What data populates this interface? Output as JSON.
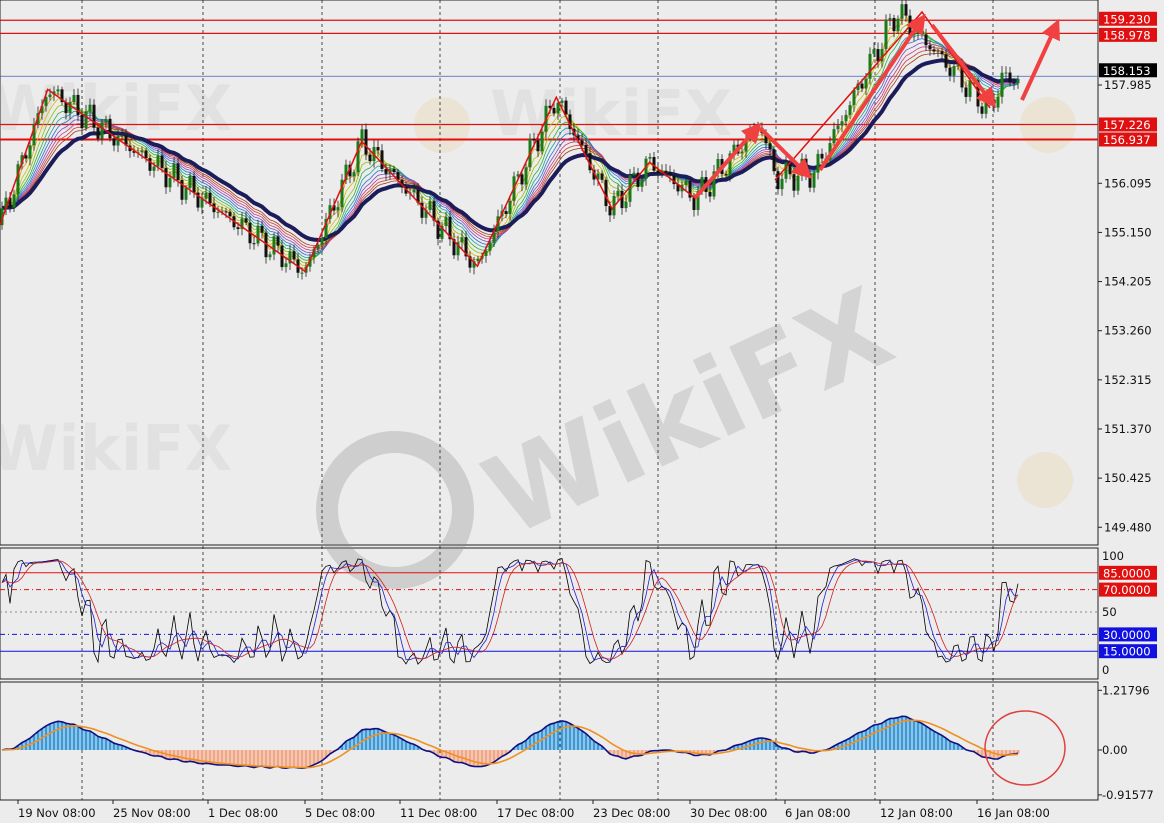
{
  "chart_data": {
    "type": "candlestick",
    "title": "",
    "watermark": "WikiFX",
    "price_axis": {
      "ticks": [
        "157.985",
        "156.095",
        "155.150",
        "154.205",
        "153.260",
        "152.315",
        "151.370",
        "150.425",
        "149.480"
      ],
      "ylim": [
        149.2,
        159.5
      ]
    },
    "time_axis": {
      "ticks": [
        "19 Nov 08:00",
        "25 Nov 08:00",
        "1 Dec 08:00",
        "5 Dec 08:00",
        "11 Dec 08:00",
        "17 Dec 08:00",
        "23 Dec 08:00",
        "30 Dec 08:00",
        "6 Jan 08:00",
        "12 Jan 08:00",
        "16 Jan 08:00"
      ]
    },
    "current_price": "158.153",
    "horizontal_levels": [
      {
        "value": "159.230",
        "color": "#e01010"
      },
      {
        "value": "158.978",
        "color": "#e01010"
      },
      {
        "value": "157.226",
        "color": "#e01010"
      },
      {
        "value": "156.937",
        "color": "#e01010"
      }
    ],
    "price_path_pivots": [
      {
        "t": "18 Nov 05:00",
        "price": 155.3
      },
      {
        "t": "21 Nov 05:00",
        "price": 157.9
      },
      {
        "t": "5 Dec 08:00",
        "price": 154.4
      },
      {
        "t": "8 Dec 22:00",
        "price": 156.9
      },
      {
        "t": "16 Dec 03:00",
        "price": 154.5
      },
      {
        "t": "21 Dec 01:00",
        "price": 157.75
      },
      {
        "t": "24 Dec 17:00",
        "price": 155.6
      },
      {
        "t": "27 Dec 10:00",
        "price": 156.5
      },
      {
        "t": "30 Dec 18:00",
        "price": 155.8
      },
      {
        "t": "4 Jan 13:00",
        "price": 157.25
      },
      {
        "t": "5 Jan 15:00",
        "price": 156.2
      },
      {
        "t": "8 Jan 05:00",
        "price": 156.3
      },
      {
        "t": "13 Jan 01:00",
        "price": 159.4
      },
      {
        "t": "16 Jan 21:00",
        "price": 157.5
      },
      {
        "t": "17 Jan 08:00",
        "price": 158.1
      }
    ],
    "oscillator": {
      "axis_ticks": [
        "100",
        "50",
        "0"
      ],
      "levels": [
        {
          "value": "85.0000",
          "color": "#e01010"
        },
        {
          "value": "70.0000",
          "color": "#e01010"
        },
        {
          "value": "30.0000",
          "color": "#1010e0"
        },
        {
          "value": "15.0000",
          "color": "#1010e0"
        }
      ]
    },
    "macd": {
      "axis_ticks": [
        "1.21796",
        "0.00",
        "-0.91577"
      ],
      "ylim": [
        -0.91577,
        1.21796
      ]
    },
    "colors": {
      "up": "#1a7a1a",
      "down": "#111111",
      "zigzag": "#e01010",
      "arrow": "#f04040",
      "slow_ma": "#1c1c5a",
      "macd_pos": "#3a9ad9",
      "macd_neg": "#f4a582"
    }
  }
}
